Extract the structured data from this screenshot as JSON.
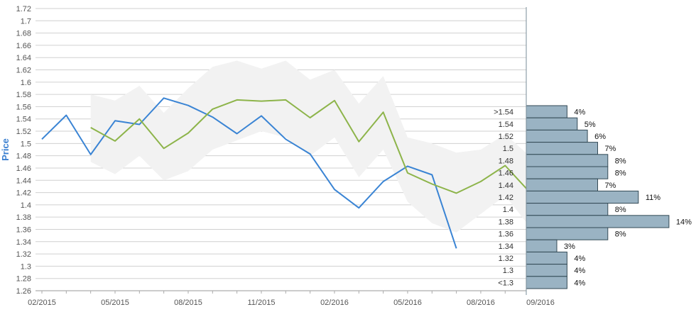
{
  "chart_data": {
    "type": "line",
    "ylabel": "Price",
    "ylim": [
      1.26,
      1.72
    ],
    "y_ticks": [
      "1.26",
      "1.28",
      "1.3",
      "1.32",
      "1.34",
      "1.36",
      "1.38",
      "1.4",
      "1.42",
      "1.44",
      "1.46",
      "1.48",
      "1.5",
      "1.52",
      "1.54",
      "1.56",
      "1.58",
      "1.6",
      "1.62",
      "1.64",
      "1.66",
      "1.68",
      "1.7",
      "1.72"
    ],
    "x_ticks": [
      "02/2015",
      "05/2015",
      "08/2015",
      "11/2015",
      "02/2016",
      "05/2016",
      "08/2016",
      "09/2016"
    ],
    "grid": true,
    "series": [
      {
        "color": "#3a84d4",
        "x": [
          "2015-02",
          "2015-03",
          "2015-04",
          "2015-05",
          "2015-06",
          "2015-07",
          "2015-08",
          "2015-09",
          "2015-10",
          "2015-11",
          "2015-12",
          "2016-01",
          "2016-02",
          "2016-03",
          "2016-04",
          "2016-05",
          "2016-06",
          "2016-07"
        ],
        "values": [
          1.507,
          1.546,
          1.482,
          1.537,
          1.531,
          1.574,
          1.562,
          1.543,
          1.516,
          1.545,
          1.507,
          1.483,
          1.425,
          1.395,
          1.438,
          1.463,
          1.449,
          1.329
        ]
      },
      {
        "color": "#8db44a",
        "x": [
          "2015-04",
          "2015-05",
          "2015-06",
          "2015-07",
          "2015-08",
          "2015-09",
          "2015-10",
          "2015-11",
          "2015-12",
          "2016-01",
          "2016-02",
          "2016-03",
          "2016-04",
          "2016-05",
          "2016-06",
          "2016-07",
          "2016-08",
          "2016-09",
          "2016-10"
        ],
        "values": [
          1.526,
          1.504,
          1.54,
          1.492,
          1.517,
          1.556,
          1.571,
          1.569,
          1.571,
          1.542,
          1.57,
          1.503,
          1.551,
          1.452,
          1.434,
          1.419,
          1.438,
          1.464,
          1.421
        ]
      }
    ],
    "band": {
      "color": "#f2f2f2",
      "x": [
        "2015-04",
        "2015-05",
        "2015-06",
        "2015-07",
        "2015-08",
        "2015-09",
        "2015-10",
        "2015-11",
        "2015-12",
        "2016-01",
        "2016-02",
        "2016-03",
        "2016-04",
        "2016-05",
        "2016-06",
        "2016-07",
        "2016-08",
        "2016-09",
        "2016-10"
      ],
      "upper": [
        1.58,
        1.57,
        1.594,
        1.55,
        1.59,
        1.625,
        1.635,
        1.622,
        1.635,
        1.604,
        1.62,
        1.565,
        1.61,
        1.51,
        1.5,
        1.485,
        1.49,
        1.515,
        1.48
      ],
      "lower": [
        1.47,
        1.45,
        1.48,
        1.44,
        1.455,
        1.49,
        1.505,
        1.52,
        1.51,
        1.48,
        1.51,
        1.445,
        1.49,
        1.405,
        1.37,
        1.355,
        1.385,
        1.415,
        1.365
      ]
    },
    "distribution": {
      "color": "#9ab3c3",
      "edge_color": "#334a55",
      "bins": [
        {
          "label": ">1.54",
          "percent": 4,
          "pct_text": "4%"
        },
        {
          "label": "1.54",
          "percent": 5,
          "pct_text": "5%"
        },
        {
          "label": "1.52",
          "percent": 6,
          "pct_text": "6%"
        },
        {
          "label": "1.5",
          "percent": 7,
          "pct_text": "7%"
        },
        {
          "label": "1.48",
          "percent": 8,
          "pct_text": "8%"
        },
        {
          "label": "1.46",
          "percent": 8,
          "pct_text": "8%"
        },
        {
          "label": "1.44",
          "percent": 7,
          "pct_text": "7%"
        },
        {
          "label": "1.42",
          "percent": 11,
          "pct_text": "11%"
        },
        {
          "label": "1.4",
          "percent": 8,
          "pct_text": "8%"
        },
        {
          "label": "1.38",
          "percent": 14,
          "pct_text": "14%"
        },
        {
          "label": "1.36",
          "percent": 8,
          "pct_text": "8%"
        },
        {
          "label": "1.34",
          "percent": 3,
          "pct_text": "3%"
        },
        {
          "label": "1.32",
          "percent": 4,
          "pct_text": "4%"
        },
        {
          "label": "1.3",
          "percent": 4,
          "pct_text": "4%"
        },
        {
          "label": "<1.3",
          "percent": 4,
          "pct_text": "4%"
        }
      ]
    }
  }
}
